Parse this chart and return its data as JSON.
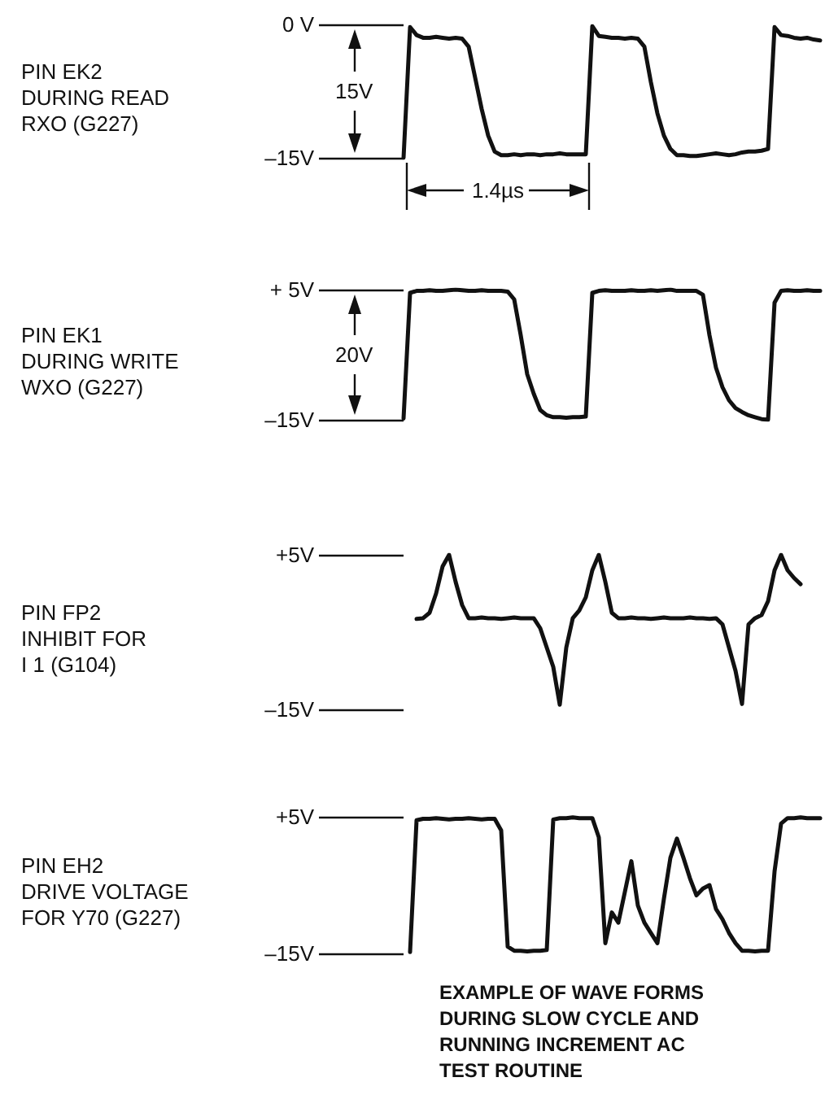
{
  "chart_data": [
    {
      "type": "line",
      "title": "PIN EK2\nDURING READ\nRXO (G227)",
      "categories": [
        null,
        null,
        null,
        null,
        null,
        null,
        null,
        null,
        null,
        null,
        null,
        null,
        null,
        null,
        null,
        null,
        null,
        null,
        null,
        null,
        null,
        null,
        null,
        null,
        null,
        null,
        null,
        null,
        null,
        null,
        null,
        null,
        null,
        null,
        null,
        null,
        null,
        null,
        null,
        null,
        null,
        null,
        null,
        null,
        null,
        null,
        null,
        null,
        null,
        null,
        null,
        null,
        null,
        null,
        null,
        null,
        null,
        null,
        null,
        null,
        null,
        null,
        null,
        null,
        null
      ],
      "values": [
        -15,
        -0.3,
        -1.2,
        -1.5,
        -1.5,
        -1.4,
        -1.5,
        -1.6,
        -1.5,
        -1.6,
        -2.5,
        -6,
        -9.5,
        -12.5,
        -14.3,
        -14.7,
        -14.7,
        -14.6,
        -14.7,
        -14.6,
        -14.6,
        -14.7,
        -14.6,
        -14.6,
        -14.5,
        -14.6,
        -14.6,
        -14.6,
        -14.6,
        -0.2,
        -1.3,
        -1.4,
        -1.5,
        -1.5,
        -1.6,
        -1.5,
        -1.6,
        -2.5,
        -6.5,
        -10,
        -12.5,
        -14,
        -14.7,
        -14.7,
        -14.8,
        -14.8,
        -14.7,
        -14.6,
        -14.5,
        -14.6,
        -14.7,
        -14.6,
        -14.4,
        -14.3,
        -14.3,
        -14.2,
        -14,
        -0.3,
        -1.2,
        -1.3,
        -1.5,
        -1.6,
        -1.5,
        -1.7,
        -1.8
      ],
      "color": "#111111",
      "ylim": [
        -15,
        0
      ],
      "yticks": [
        {
          "value": 0,
          "label": "0 V"
        },
        {
          "value": -15,
          "label": "–15V"
        }
      ],
      "tick_labels": "y",
      "grid": false,
      "marker": "none",
      "line_style": "solid",
      "annotations": [
        "15V",
        "1.4µs"
      ]
    },
    {
      "type": "line",
      "title": "PIN EK1\nDURING WRITE\nWXO (G227)",
      "categories": [
        null,
        null,
        null,
        null,
        null,
        null,
        null,
        null,
        null,
        null,
        null,
        null,
        null,
        null,
        null,
        null,
        null,
        null,
        null,
        null,
        null,
        null,
        null,
        null,
        null,
        null,
        null,
        null,
        null,
        null,
        null,
        null,
        null,
        null,
        null,
        null,
        null,
        null,
        null,
        null,
        null,
        null,
        null,
        null,
        null,
        null,
        null,
        null,
        null,
        null,
        null,
        null,
        null,
        null,
        null,
        null,
        null,
        null,
        null,
        null,
        null,
        null,
        null,
        null,
        null
      ],
      "values": [
        -14.8,
        4.5,
        4.8,
        4.8,
        4.9,
        4.8,
        4.8,
        4.9,
        5,
        4.9,
        4.8,
        4.8,
        4.9,
        4.8,
        4.8,
        4.8,
        4.7,
        3.5,
        -2,
        -8,
        -11,
        -13.5,
        -14.3,
        -14.6,
        -14.6,
        -14.7,
        -14.6,
        -14.6,
        -14.5,
        4.5,
        4.8,
        4.9,
        4.8,
        4.8,
        4.8,
        4.9,
        4.8,
        4.8,
        4.9,
        4.8,
        4.9,
        5,
        4.8,
        4.8,
        4.8,
        4.8,
        4.2,
        -2,
        -7,
        -10,
        -12,
        -13.2,
        -13.8,
        -14.3,
        -14.6,
        -14.9,
        -15,
        3,
        4.8,
        4.9,
        4.8,
        4.8,
        4.9,
        4.8,
        4.8
      ],
      "color": "#111111",
      "ylim": [
        -15,
        5
      ],
      "yticks": [
        {
          "value": 5,
          "label": "+ 5V"
        },
        {
          "value": -15,
          "label": "–15V"
        }
      ],
      "tick_labels": "y",
      "grid": false,
      "marker": "none",
      "line_style": "solid",
      "annotations": [
        "20V"
      ]
    },
    {
      "type": "line",
      "title": "PIN FP2\nINHIBIT FOR\nI 1 (G104)",
      "categories": [
        null,
        null,
        null,
        null,
        null,
        null,
        null,
        null,
        null,
        null,
        null,
        null,
        null,
        null,
        null,
        null,
        null,
        null,
        null,
        null,
        null,
        null,
        null,
        null,
        null,
        null,
        null,
        null,
        null,
        null,
        null,
        null,
        null,
        null,
        null,
        null,
        null,
        null,
        null,
        null,
        null,
        null,
        null,
        null,
        null,
        null,
        null,
        null,
        null,
        null,
        null,
        null,
        null,
        null,
        null,
        null,
        null,
        null,
        null,
        null,
        null,
        null,
        null,
        null,
        null
      ],
      "values": [
        null,
        null,
        -3.3,
        -3.2,
        -2.5,
        0,
        3.5,
        5,
        1.5,
        -1.5,
        -3.2,
        -3.2,
        -3.1,
        -3.2,
        -3.2,
        -3.3,
        -3.2,
        -3.1,
        -3.2,
        -3.2,
        -3.2,
        -4.5,
        -7,
        -9.5,
        -14.4,
        -7,
        -3.2,
        -2.2,
        -0.5,
        3,
        5,
        1.5,
        -2.5,
        -3.2,
        -3.2,
        -3.1,
        -3.2,
        -3.2,
        -3.3,
        -3.2,
        -3.1,
        -3.2,
        -3.2,
        -3.2,
        -3.1,
        -3.2,
        -3.2,
        -3.3,
        -3.2,
        -4,
        -7,
        -10,
        -14.3,
        -4,
        -3.2,
        -2.8,
        -1,
        3,
        5,
        3,
        2,
        1.2,
        null,
        null,
        null
      ],
      "color": "#111111",
      "ylim": [
        -15,
        5
      ],
      "yticks": [
        {
          "value": 5,
          "label": "+5V"
        },
        {
          "value": -15,
          "label": "–15V"
        }
      ],
      "tick_labels": "y",
      "grid": false,
      "marker": "none",
      "line_style": "solid"
    },
    {
      "type": "line",
      "title": "PIN EH2\nDRIVE VOLTAGE\nFOR Y70 (G227)",
      "categories": [
        null,
        null,
        null,
        null,
        null,
        null,
        null,
        null,
        null,
        null,
        null,
        null,
        null,
        null,
        null,
        null,
        null,
        null,
        null,
        null,
        null,
        null,
        null,
        null,
        null,
        null,
        null,
        null,
        null,
        null,
        null,
        null,
        null,
        null,
        null,
        null,
        null,
        null,
        null,
        null,
        null,
        null,
        null,
        null,
        null,
        null,
        null,
        null,
        null,
        null,
        null,
        null,
        null,
        null,
        null,
        null,
        null,
        null,
        null,
        null,
        null,
        null,
        null,
        null,
        null
      ],
      "values": [
        null,
        -14.8,
        4.5,
        4.7,
        4.7,
        4.8,
        4.7,
        4.6,
        4.7,
        4.7,
        4.8,
        4.7,
        4.6,
        4.7,
        4.7,
        3,
        -14,
        -14.6,
        -14.6,
        -14.7,
        -14.6,
        -14.6,
        -14.5,
        4.6,
        4.8,
        4.8,
        4.9,
        4.8,
        4.8,
        4.8,
        2,
        -13.5,
        -9,
        -10.5,
        -6,
        -1.5,
        -8,
        -10.5,
        -12,
        -13.5,
        -7,
        -1,
        1.8,
        -1,
        -4,
        -6.5,
        -5.5,
        -5,
        -8.5,
        -10,
        -12,
        -13.5,
        -14.6,
        -14.6,
        -14.7,
        -14.6,
        -14.6,
        -3,
        4,
        4.8,
        4.8,
        4.9,
        4.8,
        4.8,
        4.8
      ],
      "color": "#111111",
      "ylim": [
        -15,
        5
      ],
      "yticks": [
        {
          "value": 5,
          "label": "+5V"
        },
        {
          "value": -15,
          "label": "–15V"
        }
      ],
      "tick_labels": "y",
      "grid": false,
      "marker": "none",
      "line_style": "solid",
      "annotations": [
        "EXAMPLE OF WAVE FORMS\nDURING SLOW CYCLE AND\nRUNNING INCREMENT AC\nTEST ROUTINE"
      ]
    }
  ]
}
